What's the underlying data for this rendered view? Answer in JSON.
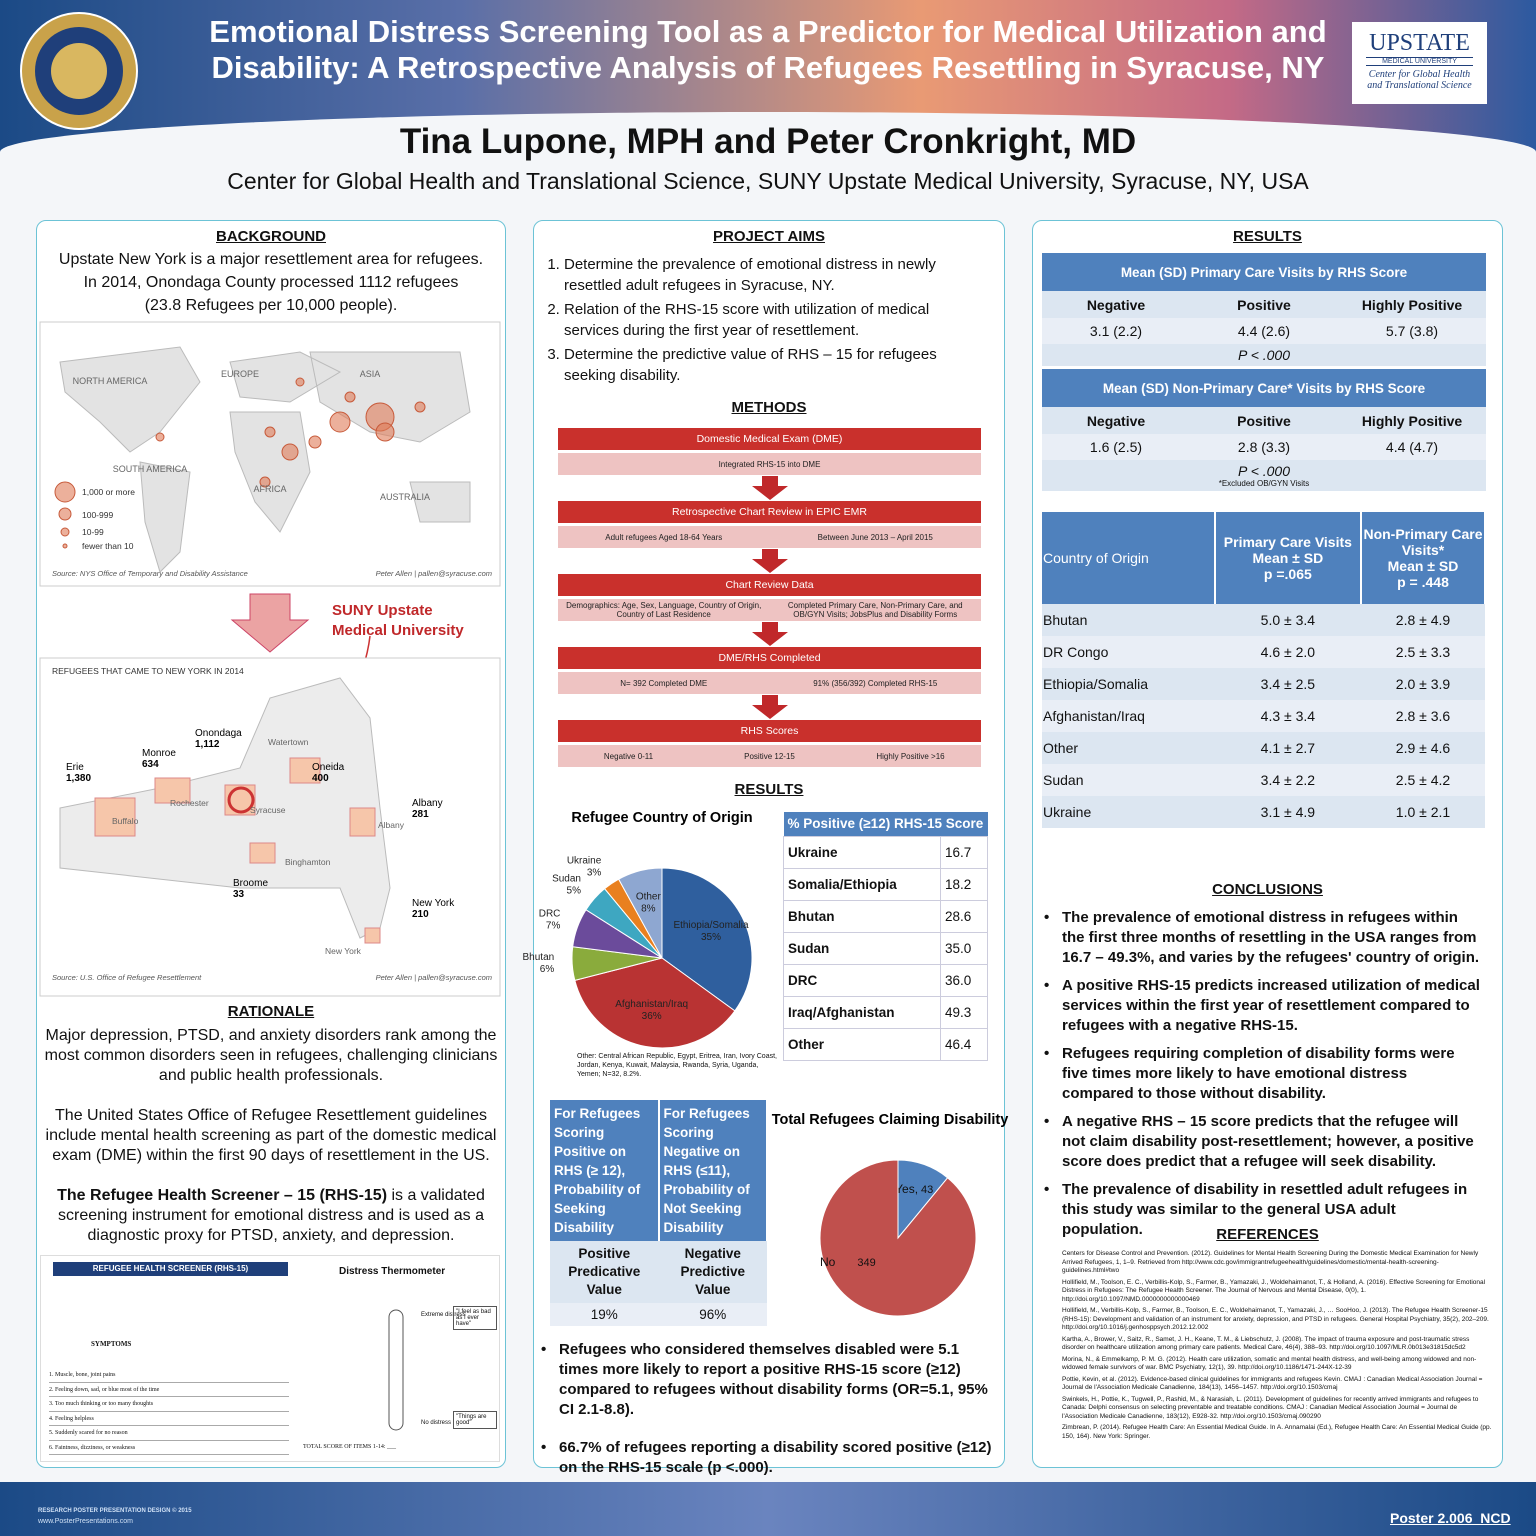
{
  "header": {
    "title_lines": [
      "Emotional Distress Screening Tool as a Predictor for Medical Utilization and",
      "Disability: A Retrospective Analysis of Refugees Resettling in Syracuse, NY"
    ],
    "authors": "Tina Lupone, MPH and Peter Cronkright, MD",
    "affiliation": "Center for Global Health and Translational Science, SUNY Upstate Medical University, Syracuse, NY, USA",
    "logo": [
      "UPSTATE",
      "MEDICAL UNIVERSITY",
      "Center for Global Health",
      "and Translational Science"
    ]
  },
  "background": {
    "heading": "BACKGROUND",
    "lines": [
      "Upstate New York is a major resettlement area for refugees.",
      "In 2014, Onondaga County processed 1112 refugees",
      "(23.8 Refugees per 10,000 people)."
    ]
  },
  "world_map": {
    "regions": [
      "NORTH AMERICA",
      "EUROPE",
      "ASIA",
      "SOUTH AMERICA",
      "AFRICA",
      "AUSTRALIA"
    ],
    "legend": [
      "1,000 or more",
      "100-999",
      "10-99",
      "fewer than 10"
    ],
    "source": "Source: NYS Office of Temporary and Disability Assistance",
    "credit": "Peter Allen | pallen@syracuse.com"
  },
  "arrow_label": [
    "SUNY Upstate",
    "Medical University"
  ],
  "ny_map": {
    "title": "REFUGEES THAT CAME TO NEW YORK IN 2014",
    "counties": [
      {
        "name": "Erie",
        "count": "1,380"
      },
      {
        "name": "Monroe",
        "count": "634"
      },
      {
        "name": "Onondaga",
        "count": "1,112"
      },
      {
        "name": "Oneida",
        "count": "400"
      },
      {
        "name": "Albany",
        "count": "281"
      },
      {
        "name": "Broome",
        "count": "33"
      },
      {
        "name": "New York",
        "count": "210"
      }
    ],
    "cities": [
      "Watertown",
      "Rochester",
      "Buffalo",
      "Syracuse",
      "Albany",
      "Binghamton",
      "New York"
    ],
    "source": "Source: U.S. Office of Refugee Resettlement",
    "credit": "Peter Allen | pallen@syracuse.com"
  },
  "rationale": {
    "heading": "RATIONALE",
    "paragraphs": [
      "Major depression, PTSD, and anxiety disorders rank among the most common disorders seen in refugees, challenging clinicians and public health professionals.",
      "The United States Office of Refugee Resettlement guidelines include mental health screening as part of the domestic medical exam (DME) within the first 90 days of resettlement in the US."
    ],
    "rhs_bold": "The Refugee Health Screener – 15 (RHS-15)",
    "rhs_text": " is a validated screening instrument for emotional distress and is used as a diagnostic proxy for PTSD, anxiety, and depression."
  },
  "screener": {
    "title": "REFUGEE HEALTH SCREENER (RHS-15)",
    "symptoms_header": "SYMPTOMS",
    "symptoms": [
      "1. Muscle, bone, joint pains",
      "2. Feeling down, sad, or blue most of the time",
      "3. Too much thinking or too many thoughts",
      "4. Feeling helpless",
      "5. Suddenly scared for no reason",
      "6. Faintness, dizziness, or weakness"
    ],
    "thermometer_title": "Distress Thermometer",
    "extreme": "Extreme distress",
    "none": "No distress",
    "quote_bad": "\"I feel as bad as I ever have\"",
    "quote_good": "\"Things are good\"",
    "total": "TOTAL SCORE OF ITEMS 1-14: ___"
  },
  "aims": {
    "heading": "PROJECT AIMS",
    "items": [
      "Determine the prevalence of emotional distress in newly resettled adult refugees in Syracuse, NY.",
      "Relation of the RHS-15 score with utilization of medical services during the first year of resettlement.",
      "Determine the predictive value of RHS – 15 for refugees seeking disability."
    ]
  },
  "methods": {
    "heading": "METHODS",
    "steps": [
      {
        "title": "Domestic Medical Exam (DME)",
        "details": [
          "Integrated RHS-15 into DME"
        ]
      },
      {
        "title": "Retrospective Chart Review in EPIC EMR",
        "details": [
          "Adult refugees Aged 18-64 Years",
          "Between June 2013 – April 2015"
        ]
      },
      {
        "title": "Chart Review Data",
        "details": [
          "Demographics: Age, Sex, Language, Country of Origin, Country of Last Residence",
          "Completed Primary Care, Non-Primary Care, and OB/GYN Visits; JobsPlus and Disability Forms"
        ]
      },
      {
        "title": "DME/RHS Completed",
        "details": [
          "N= 392 Completed DME",
          "91% (356/392) Completed RHS-15"
        ]
      },
      {
        "title": "RHS Scores",
        "details": [
          "Negative 0-11",
          "Positive 12-15",
          "Highly Positive >16"
        ]
      }
    ]
  },
  "results_mid": {
    "heading": "RESULTS",
    "pie_note": "Other: Central African Republic, Egypt, Eritrea, Iran, Ivory Coast, Jordan, Kenya, Kuwait, Malaysia, Rwanda, Syria, Uganda, Yemen; N=32, 8.2%.",
    "positive_table": {
      "header": "% Positive (≥12) RHS-15 Score",
      "rows": [
        [
          "Ukraine",
          "16.7"
        ],
        [
          "Somalia/Ethiopia",
          "18.2"
        ],
        [
          "Bhutan",
          "28.6"
        ],
        [
          "Sudan",
          "35.0"
        ],
        [
          "DRC",
          "36.0"
        ],
        [
          "Iraq/Afghanistan",
          "49.3"
        ],
        [
          "Other",
          "46.4"
        ]
      ]
    },
    "predictive_table": {
      "headers": [
        "For Refugees Scoring Positive on RHS (≥ 12), Probability of Seeking Disability",
        "For Refugees Scoring Negative on RHS (≤11), Probability of Not Seeking Disability"
      ],
      "subheaders": [
        "Positive Predicative Value",
        "Negative Predictive Value"
      ],
      "values": [
        "19%",
        "96%"
      ]
    },
    "bullets": [
      "Refugees who considered themselves disabled were 5.1 times more likely to report a positive RHS-15 score (≥12) compared to refugees without disability forms (OR=5.1, 95% CI 2.1-8.8).",
      "66.7% of refugees reporting a disability scored positive (≥12) on the RHS-15 scale (p <.000)."
    ]
  },
  "chart_data": [
    {
      "type": "pie",
      "title": "Refugee Country of Origin",
      "categories": [
        "Ethiopia/Somalia",
        "Afghanistan/Iraq",
        "Bhutan",
        "DRC",
        "Sudan",
        "Ukraine",
        "Other"
      ],
      "values": [
        35,
        36,
        6,
        7,
        5,
        3,
        8
      ],
      "value_labels": [
        "35%",
        "36%",
        "6%",
        "7%",
        "5%",
        "3%",
        "8%"
      ],
      "colors": [
        "#2f5f9e",
        "#b93333",
        "#8aab3c",
        "#6b4b9b",
        "#3ea7c1",
        "#e9801f",
        "#8ea7d1"
      ]
    },
    {
      "type": "pie",
      "title": "Total Refugees Claiming Disability",
      "categories": [
        "Yes,",
        "No"
      ],
      "values": [
        43,
        349
      ],
      "colors": [
        "#4f81bd",
        "#c0504d"
      ]
    }
  ],
  "results_right": {
    "heading": "RESULTS",
    "tables": [
      {
        "title": "Mean (SD) Primary Care Visits by RHS Score",
        "columns": [
          "Negative",
          "Positive",
          "Highly Positive"
        ],
        "values": [
          "3.1 (2.2)",
          "4.4 (2.6)",
          "5.7 (3.8)"
        ],
        "p": "P < .000"
      },
      {
        "title": "Mean (SD) Non-Primary Care* Visits by RHS Score",
        "columns": [
          "Negative",
          "Positive",
          "Highly Positive"
        ],
        "values": [
          "1.6 (2.5)",
          "2.8 (3.3)",
          "4.4 (4.7)"
        ],
        "p": "P < .000",
        "note": "*Excluded OB/GYN Visits"
      }
    ],
    "country_table": {
      "headers": [
        [
          "Country of Origin"
        ],
        [
          "Primary Care Visits",
          "Mean ± SD",
          "p =.065"
        ],
        [
          "Non-Primary Care",
          "Visits*",
          "Mean ± SD",
          "p = .448"
        ]
      ],
      "rows": [
        [
          "Bhutan",
          "5.0 ± 3.4",
          "2.8 ± 4.9"
        ],
        [
          "DR Congo",
          "4.6 ± 2.0",
          "2.5 ± 3.3"
        ],
        [
          "Ethiopia/Somalia",
          "3.4 ± 2.5",
          "2.0 ± 3.9"
        ],
        [
          "Afghanistan/Iraq",
          "4.3 ± 3.4",
          "2.8 ± 3.6"
        ],
        [
          "Other",
          "4.1 ± 2.7",
          "2.9 ± 4.6"
        ],
        [
          "Sudan",
          "3.4 ± 2.2",
          "2.5 ± 4.2"
        ],
        [
          "Ukraine",
          "3.1 ± 4.9",
          "1.0 ± 2.1"
        ]
      ]
    }
  },
  "conclusions": {
    "heading": "CONCLUSIONS",
    "items": [
      "The prevalence of emotional distress in refugees within the first three months of resettling in the USA ranges from 16.7 – 49.3%, and varies by the refugees' country of origin.",
      "A positive RHS-15 predicts increased utilization of medical services within the first year of resettlement compared to refugees with a negative RHS-15.",
      "Refugees requiring completion of disability forms were five times more likely to have emotional distress compared to those without disability.",
      "A negative RHS – 15 score predicts that the refugee will not claim disability post-resettlement; however, a positive score does predict that a refugee will seek disability.",
      "The prevalence of disability in resettled adult refugees in this study was similar to the general USA adult population."
    ]
  },
  "references": {
    "heading": "REFERENCES",
    "items": [
      "Centers for Disease Control and Prevention. (2012). Guidelines for Mental Health Screening During the Domestic Medical Examination for Newly Arrived Refugees, 1, 1–9. Retrieved from http://www.cdc.gov/immigrantrefugeehealth/guidelines/domestic/mental-health-screening-guidelines.html#two",
      "Hollifield, M., Toolson, E. C., Verbillis-Kolp, S., Farmer, B., Yamazaki, J., Woldehaimanot, T., & Holland, A. (2016). Effective Screening for Emotional Distress in Refugees: The Refugee Health Screener. The Journal of Nervous and Mental Disease, 0(0), 1. http://doi.org/10.1097/NMD.0000000000000469",
      "Hollifield, M., Verbillis-Kolp, S., Farmer, B., Toolson, E. C., Woldehaimanot, T., Yamazaki, J., … SooHoo, J. (2013). The Refugee Health Screener-15 (RHS-15): Development and validation of an instrument for anxiety, depression, and PTSD in refugees. General Hospital Psychiatry, 35(2), 202–209. http://doi.org/10.1016/j.genhosppsych.2012.12.002",
      "Kartha, A., Brower, V., Saitz, R., Samet, J. H., Keane, T. M., & Liebschutz, J. (2008). The impact of trauma exposure and post-traumatic stress disorder on healthcare utilization among primary care patients. Medical Care, 46(4), 388–93. http://doi.org/10.1097/MLR.0b013e31815dc5d2",
      "Morina, N., & Emmelkamp, P. M. G. (2012). Health care utilization, somatic and mental health distress, and well-being among widowed and non-widowed female survivors of war. BMC Psychiatry, 12(1), 39. http://doi.org/10.1186/1471-244X-12-39",
      "Pottie, Kevin, et al. (2012). Evidence-based clinical guidelines for immigrants and refugees Kevin. CMAJ : Canadian Medical Association Journal = Journal de l'Association Medicale Canadienne, 184(13), 1456–1457. http://doi.org/10.1503/cmaj",
      "Swinkels, H., Pottie, K., Tugwell, P., Rashid, M., & Narasiah, L. (2011). Development of guidelines for recently arrived immigrants and refugees to Canada: Delphi consensus on selecting preventable and treatable conditions. CMAJ : Canadian Medical Association Journal = Journal de l'Association Medicale Canadienne, 183(12), E928-32. http://doi.org/10.1503/cmaj.090290",
      "Zimbrean, P. (2014). Refugee Health Care: An Essential Medical Guide. In A. Annamalai (Ed.), Refugee Health Care: An Essential Medical Guide (pp. 150, 164). New York: Springer."
    ]
  },
  "footer": {
    "poster_id": "Poster 2.006_NCD",
    "design": "RESEARCH POSTER PRESENTATION DESIGN © 2015",
    "site": "www.PosterPresentations.com"
  }
}
